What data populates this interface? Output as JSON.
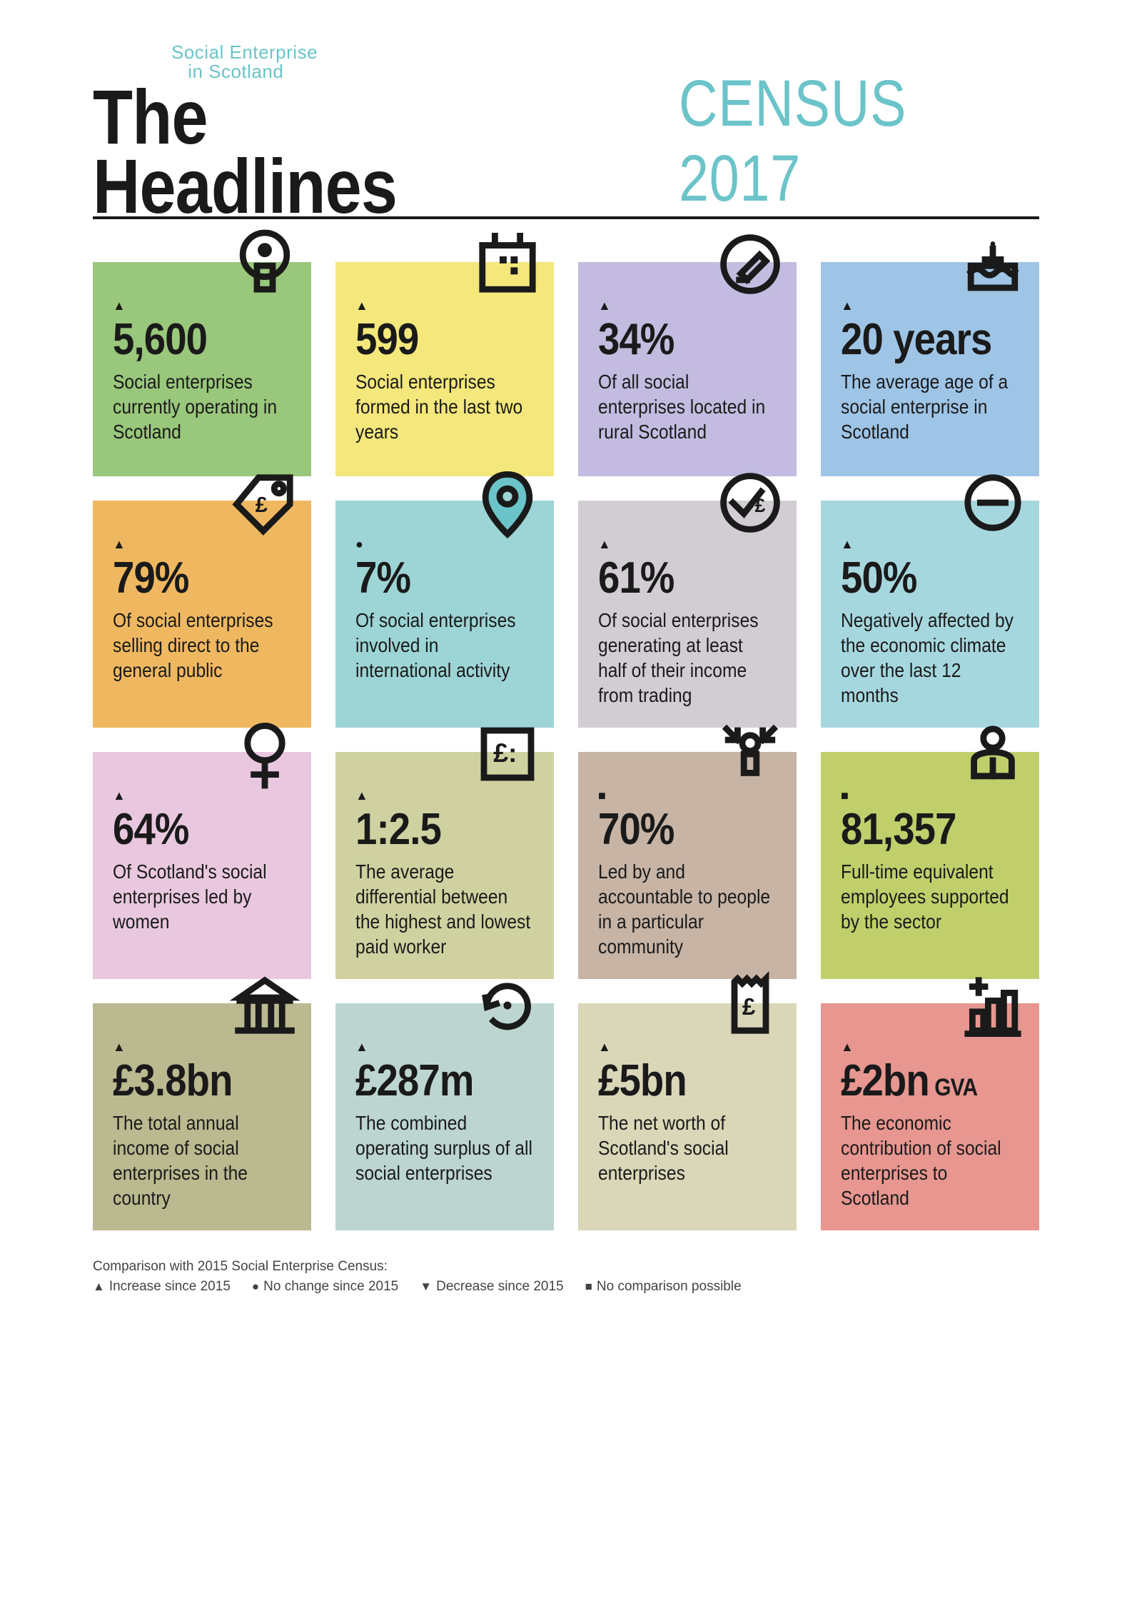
{
  "header": {
    "subtitle_line1": "Social Enterprise",
    "subtitle_line2": "in Scotland",
    "title": "The Headlines",
    "census": "CENSUS 2017"
  },
  "trend_symbols": {
    "increase": "▲",
    "nochange": "●",
    "decrease": "▼",
    "nocomparison": "■"
  },
  "cards": [
    {
      "bg": "#99c77b",
      "icon": "person-target",
      "trend": "increase",
      "stat": "5,600",
      "suffix": "",
      "desc": "Social enterprises currently operating in Scotland"
    },
    {
      "bg": "#f4e77b",
      "icon": "calendar",
      "trend": "increase",
      "stat": "599",
      "suffix": "",
      "desc": "Social enterprises formed in the last two years"
    },
    {
      "bg": "#c3bce0",
      "icon": "write-circle",
      "trend": "increase",
      "stat": "34%",
      "suffix": "",
      "desc": "Of all social enterprises located in rural Scotland"
    },
    {
      "bg": "#9ec4e6",
      "icon": "cake",
      "trend": "increase",
      "stat": "20 years",
      "suffix": "",
      "desc": "The average age of a social enterprise in Scotland"
    },
    {
      "bg": "#efb860",
      "icon": "tag-pound",
      "trend": "increase",
      "stat": "79%",
      "suffix": "",
      "desc": "Of social enterprises selling direct to the general public"
    },
    {
      "bg": "#9dd4d5",
      "icon": "pin",
      "trend": "nochange",
      "stat": "7%",
      "suffix": "",
      "desc": "Of social enterprises involved in international activity"
    },
    {
      "bg": "#d2ccd3",
      "icon": "check-pound",
      "trend": "increase",
      "stat": "61%",
      "suffix": "",
      "desc": "Of social enterprises generating at least half of their income from trading"
    },
    {
      "bg": "#a6d7de",
      "icon": "minus-circle",
      "trend": "increase",
      "stat": "50%",
      "suffix": "",
      "desc": "Negatively affected by the economic climate over the last 12 months"
    },
    {
      "bg": "#e9c8df",
      "icon": "female",
      "trend": "increase",
      "stat": "64%",
      "suffix": "",
      "desc": "Of Scotland's social enterprises led by women"
    },
    {
      "bg": "#cfd2a0",
      "icon": "pound-box",
      "trend": "increase",
      "stat": "1:2.5",
      "suffix": "",
      "desc": "The average differential between the highest and lowest paid worker"
    },
    {
      "bg": "#c7b4a5",
      "icon": "arrows-in",
      "trend": "nocomparison",
      "stat": "70%",
      "suffix": "",
      "desc": "Led by and accountable to people in a particular community"
    },
    {
      "bg": "#c0cf6b",
      "icon": "person-shield",
      "trend": "nocomparison",
      "stat": "81,357",
      "suffix": "",
      "desc": "Full-time equivalent employees supported by the sector"
    },
    {
      "bg": "#bab98f",
      "icon": "bank",
      "trend": "increase",
      "stat": "£3.8bn",
      "suffix": "",
      "desc": "The total annual income of social enterprises in the country"
    },
    {
      "bg": "#bcd5d0",
      "icon": "cycle",
      "trend": "increase",
      "stat": "£287m",
      "suffix": "",
      "desc": "The combined operating surplus of all social enterprises"
    },
    {
      "bg": "#d9d7b8",
      "icon": "receipt",
      "trend": "increase",
      "stat": "£5bn",
      "suffix": "",
      "desc": "The net worth of Scotland's social enterprises"
    },
    {
      "bg": "#e79690",
      "icon": "bars-plus",
      "trend": "increase",
      "stat": "£2bn",
      "suffix": " GVA",
      "desc": "The economic contribution of social enterprises to Scotland"
    }
  ],
  "legend": {
    "title": "Comparison with 2015 Social Enterprise Census:",
    "items": [
      {
        "sym": "▲",
        "label": "Increase since 2015"
      },
      {
        "sym": "●",
        "label": "No change since 2015"
      },
      {
        "sym": "▼",
        "label": "Decrease since 2015"
      },
      {
        "sym": "■",
        "label": "No comparison possible"
      }
    ]
  },
  "icon_stroke": "#1a1a1a",
  "icon_stroke_width": 8
}
